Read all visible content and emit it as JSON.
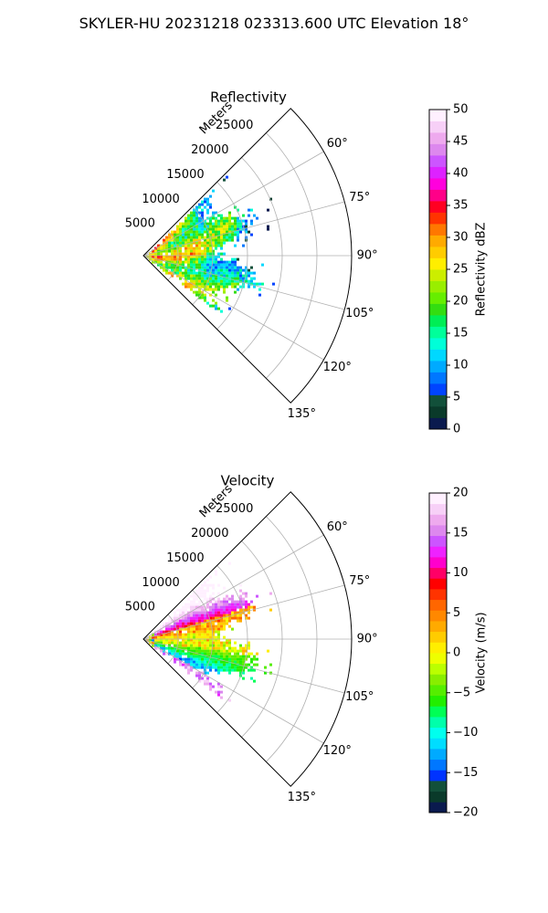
{
  "figure": {
    "suptitle": "SKYLER-HU  20231218  023313.600 UTC Elevation 18°"
  },
  "chart_data": [
    {
      "type": "heatmap",
      "projection": "polar-sector",
      "title": "Reflectivity",
      "range_label": "Meters",
      "range_ticks": [
        5000,
        10000,
        15000,
        20000,
        25000
      ],
      "range_tick_labels": [
        "5000",
        "10000",
        "15000",
        "20000",
        "25000"
      ],
      "range_max": 30000,
      "angle_ticks": [
        60,
        75,
        90,
        105,
        120,
        135
      ],
      "angle_tick_labels": [
        "60°",
        "75°",
        "90°",
        "105°",
        "120°",
        "135°"
      ],
      "angle_range": [
        45,
        135
      ],
      "grid": true,
      "data_extent": {
        "min_angle": 45,
        "max_angle": 127,
        "max_range": 18000
      },
      "colorbar": {
        "label": "Reflectivity dBZ",
        "min": 0,
        "max": 50,
        "ticks": [
          0,
          5,
          10,
          15,
          20,
          25,
          30,
          35,
          40,
          45,
          50
        ],
        "tick_labels": [
          "0",
          "5",
          "10",
          "15",
          "20",
          "25",
          "30",
          "35",
          "40",
          "45",
          "50"
        ],
        "colors": [
          "#0a1a4e",
          "#0a3a2a",
          "#12503a",
          "#0044ff",
          "#0077ff",
          "#00aaff",
          "#00d8ff",
          "#00ffd8",
          "#00ff9a",
          "#00ee55",
          "#33dd11",
          "#66ee00",
          "#99ee00",
          "#ccee00",
          "#ffee00",
          "#ffcc00",
          "#ffaa00",
          "#ff7700",
          "#ff3300",
          "#ff0022",
          "#ff0088",
          "#ff00dd",
          "#dd22ff",
          "#cc55ff",
          "#dd88ee",
          "#eeaaee",
          "#f7d0f7",
          "#fff0ff"
        ]
      }
    },
    {
      "type": "heatmap",
      "projection": "polar-sector",
      "title": "Velocity",
      "range_label": "Meters",
      "range_ticks": [
        5000,
        10000,
        15000,
        20000,
        25000
      ],
      "range_tick_labels": [
        "5000",
        "10000",
        "15000",
        "20000",
        "25000"
      ],
      "range_max": 30000,
      "angle_ticks": [
        60,
        75,
        90,
        105,
        120,
        135
      ],
      "angle_tick_labels": [
        "60°",
        "75°",
        "90°",
        "105°",
        "120°",
        "135°"
      ],
      "angle_range": [
        45,
        135
      ],
      "grid": true,
      "data_extent": {
        "min_angle": 45,
        "max_angle": 127,
        "max_range": 18000
      },
      "colorbar": {
        "label": "Velocity (m/s)",
        "min": -20,
        "max": 20,
        "ticks": [
          -20,
          -15,
          -10,
          -5,
          0,
          5,
          10,
          15,
          20
        ],
        "tick_labels": [
          "−20",
          "−15",
          "−10",
          "−5",
          "0",
          "5",
          "10",
          "15",
          "20"
        ],
        "colors": [
          "#0a1a4e",
          "#0a3a2a",
          "#12503a",
          "#0033ff",
          "#0077ff",
          "#00aaff",
          "#00ddff",
          "#00ffee",
          "#00ffaa",
          "#00ff55",
          "#22ee00",
          "#55ee00",
          "#88ee00",
          "#bbff00",
          "#eeff00",
          "#ffee00",
          "#ffcc00",
          "#ffaa00",
          "#ff8800",
          "#ff6600",
          "#ff3300",
          "#ff0000",
          "#ff0066",
          "#ff00cc",
          "#ee22ff",
          "#cc55ff",
          "#dd88ee",
          "#eeaaee",
          "#f7d0f7",
          "#fff0ff"
        ]
      }
    }
  ]
}
